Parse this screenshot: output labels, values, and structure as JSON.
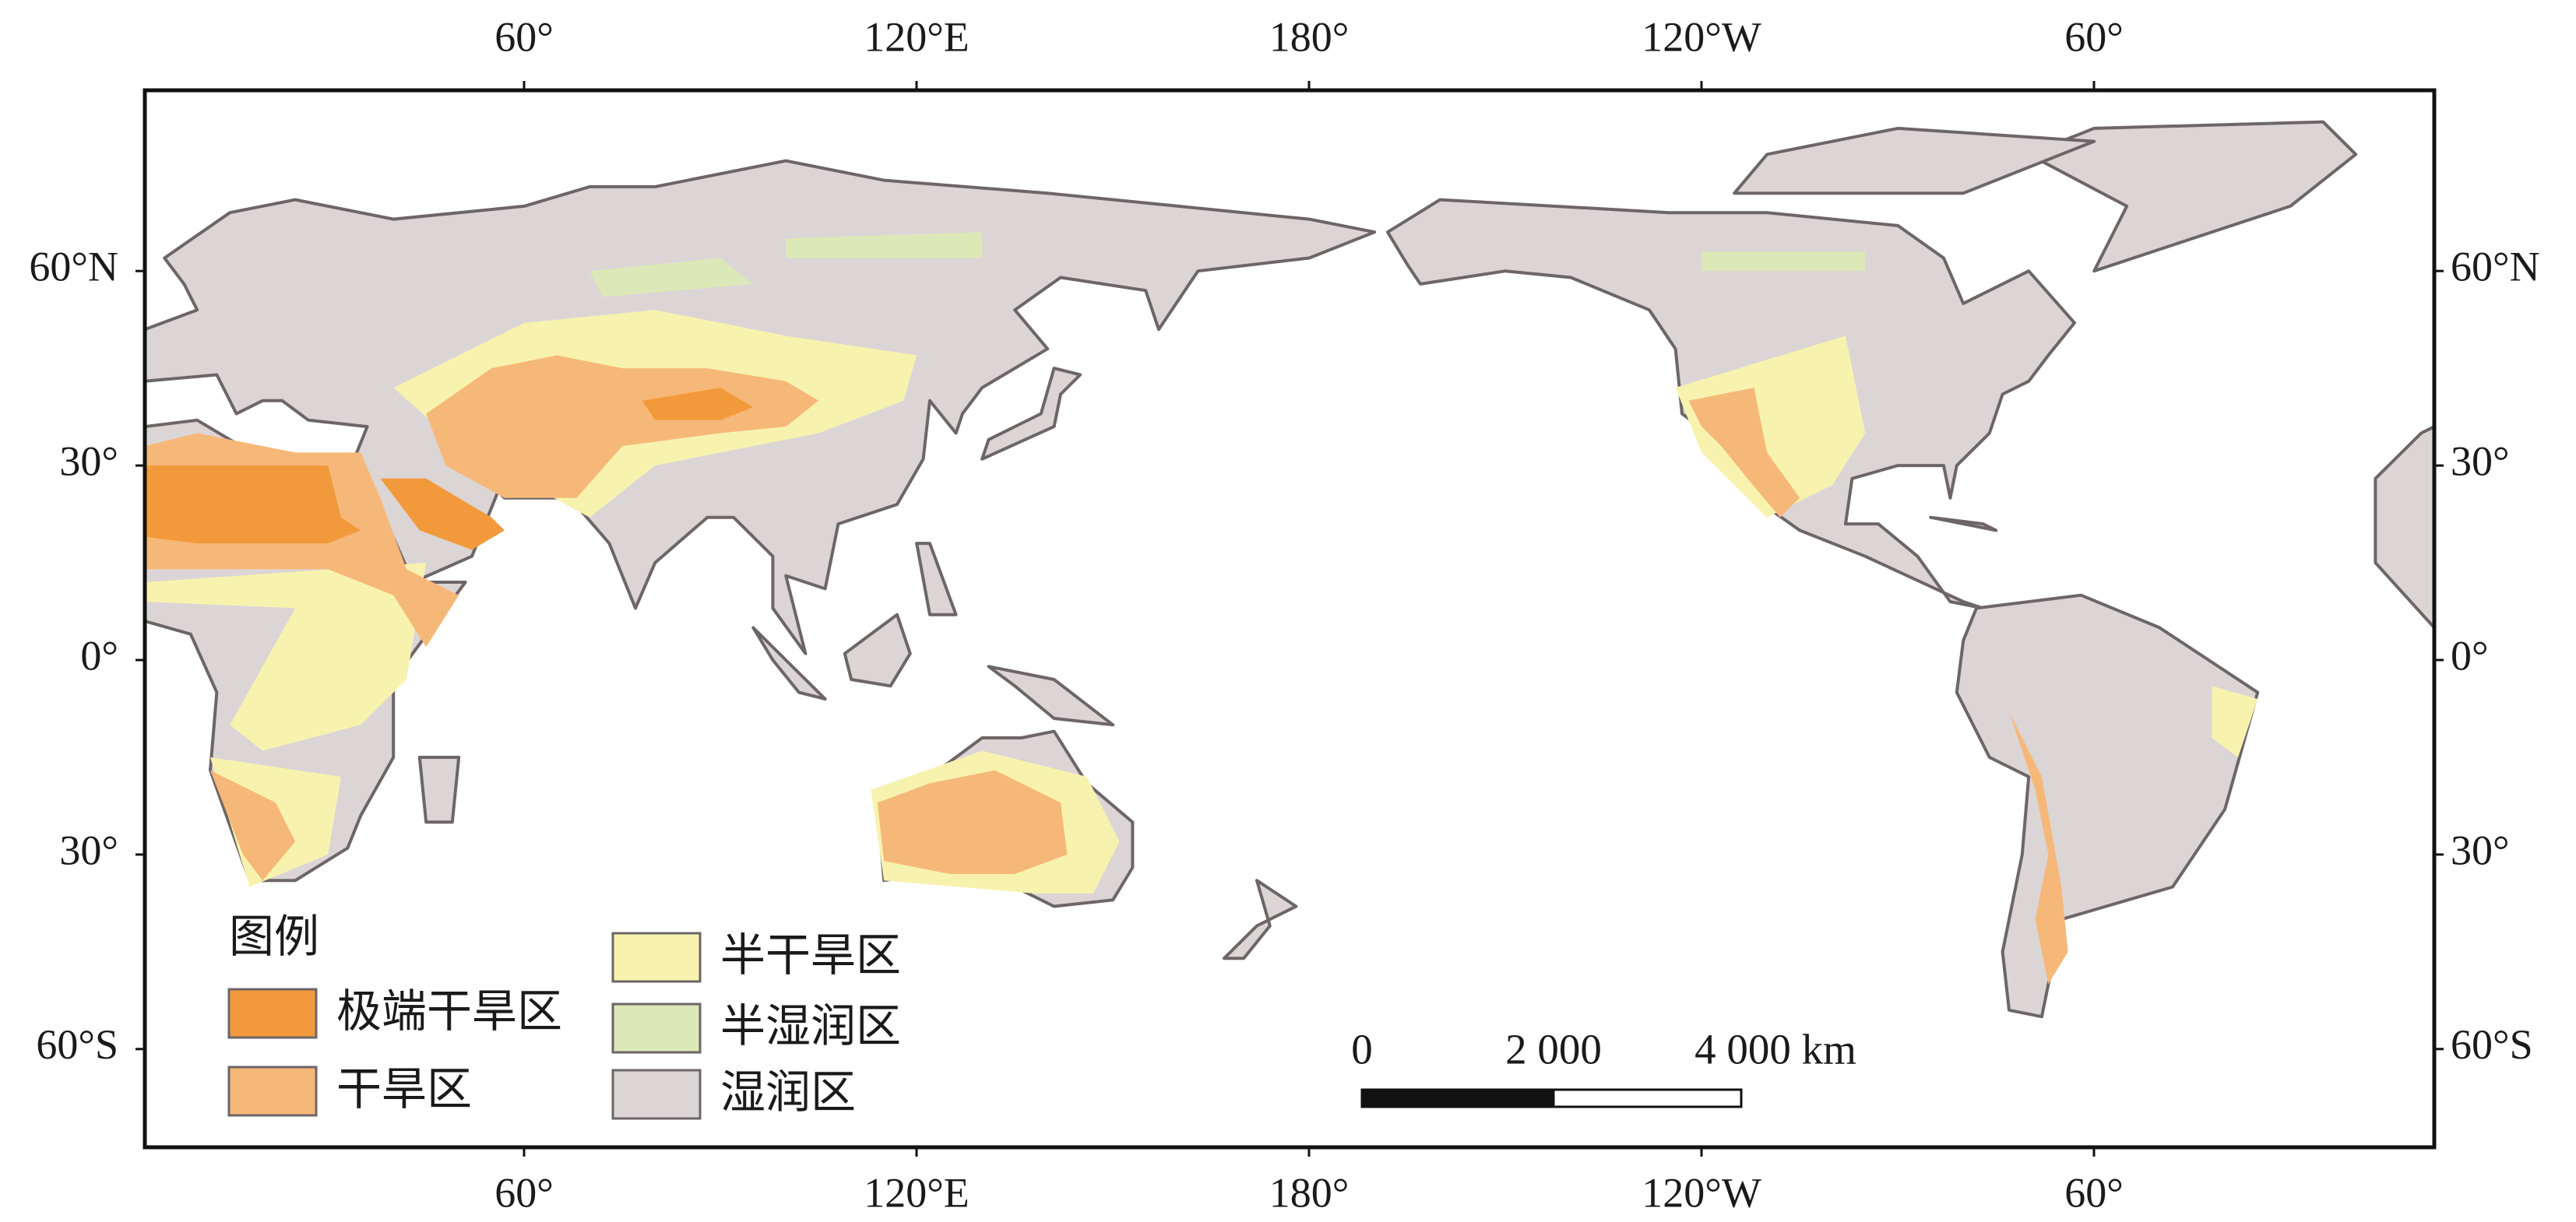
{
  "map": {
    "lon_ticks": [
      {
        "value": 60,
        "label": "60°"
      },
      {
        "value": 120,
        "label": "120°E"
      },
      {
        "value": 180,
        "label": "180°"
      },
      {
        "value": -120,
        "label": "120°W"
      },
      {
        "value": -60,
        "label": "60°"
      }
    ],
    "lat_ticks": [
      {
        "value": 60,
        "label": "60°N"
      },
      {
        "value": 30,
        "label": "30°"
      },
      {
        "value": 0,
        "label": "0°"
      },
      {
        "value": -30,
        "label": "30°"
      },
      {
        "value": -60,
        "label": "60°S"
      }
    ],
    "legend": {
      "title": "图例",
      "items": [
        {
          "label": "极端干旱区",
          "color": "#f29a3b"
        },
        {
          "label": "干旱区",
          "color": "#f6b878"
        },
        {
          "label": "半干旱区",
          "color": "#f7f3af"
        },
        {
          "label": "半湿润区",
          "color": "#dde8b8"
        },
        {
          "label": "湿润区",
          "color": "#dcd5d6"
        }
      ]
    },
    "scale_bar": {
      "labels": [
        "0",
        "2 000",
        "4 000 km"
      ]
    }
  }
}
